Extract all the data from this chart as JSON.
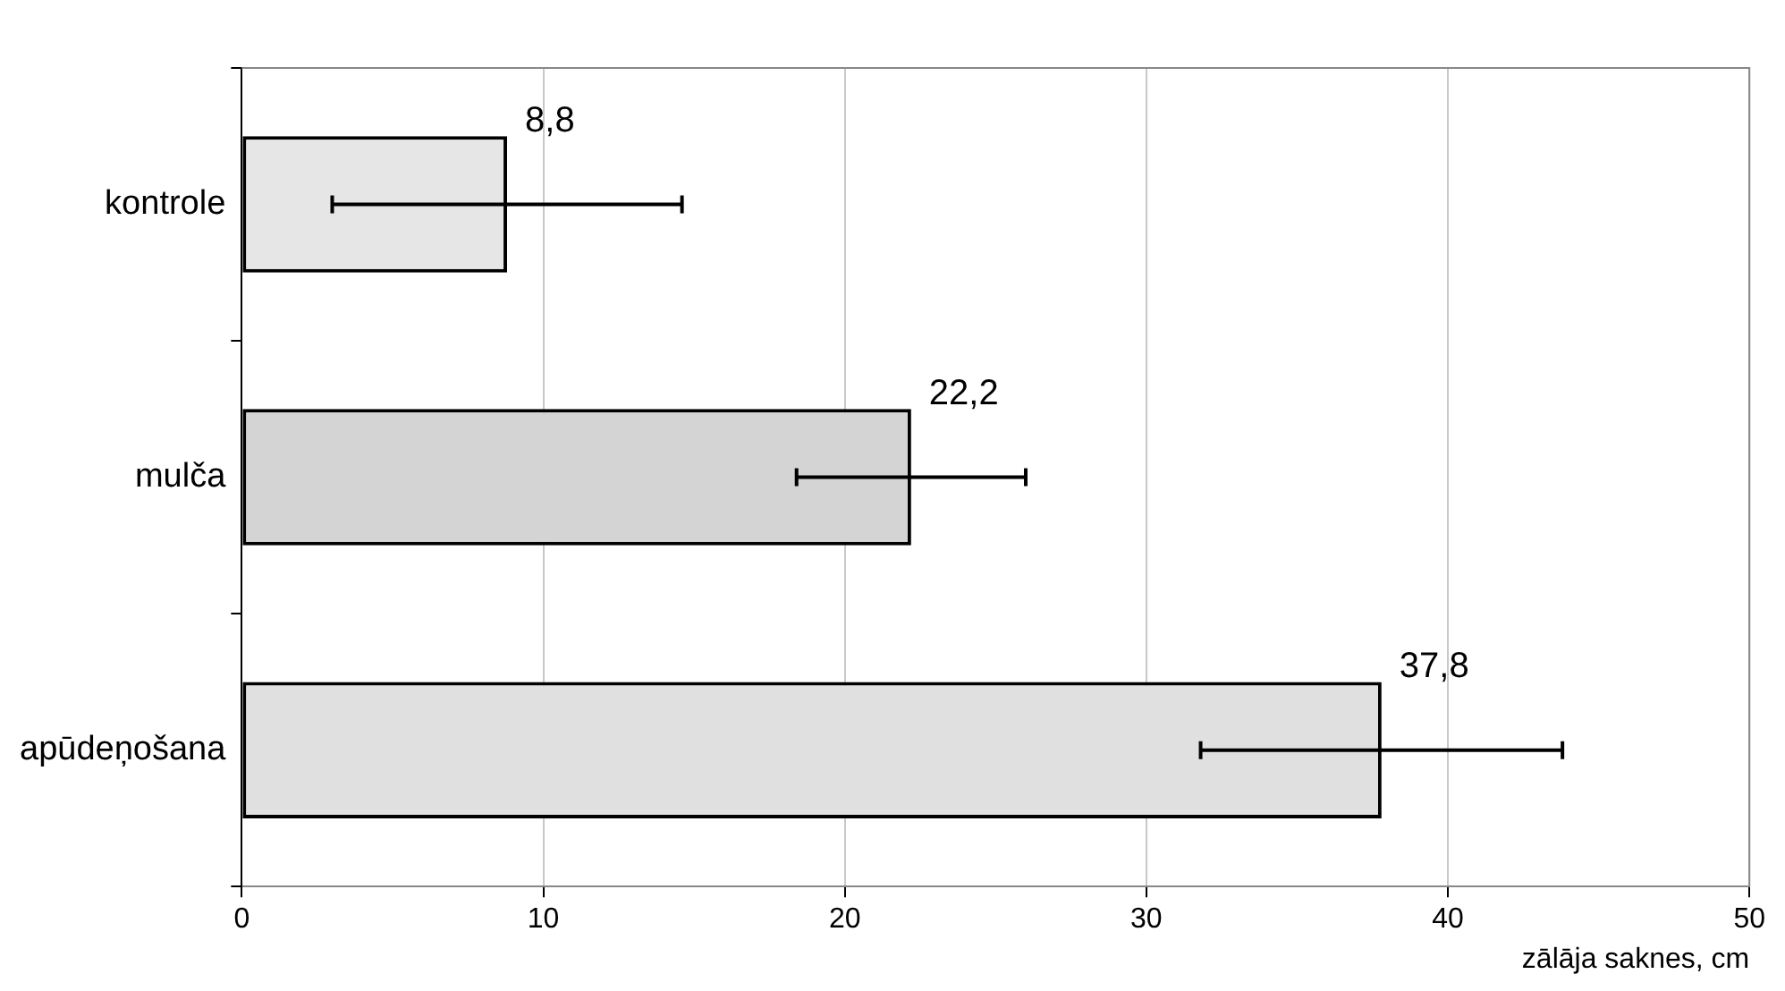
{
  "chart_data": {
    "type": "bar",
    "orientation": "horizontal",
    "categories": [
      "kontrole",
      "mulča",
      "apūdeņošana"
    ],
    "values": [
      8.8,
      22.2,
      37.8
    ],
    "errors": [
      5.8,
      3.8,
      6.0
    ],
    "colors": [
      "#e6e6e6",
      "#d4d4d4",
      "#e0e0e0"
    ],
    "xlabel": "zālāja saknes, cm",
    "xlim": [
      0,
      50
    ],
    "xticks": [
      0,
      10,
      20,
      30,
      40,
      50
    ],
    "value_labels": [
      "8,8",
      "22,2",
      "37,8"
    ],
    "grid": "x",
    "legend": false
  }
}
